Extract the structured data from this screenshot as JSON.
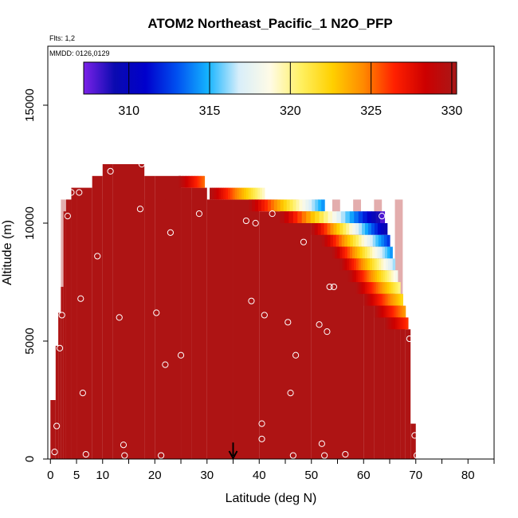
{
  "chart_data": {
    "type": "heatmap",
    "title": "ATOM2 Northeast_Pacific_1 N2O_PFP",
    "subtitle_flights": "Flts: 1,2",
    "subtitle_dates": "MMDD: 0126,0129",
    "xlabel": "Latitude (deg N)",
    "ylabel": "Altitude (m)",
    "xlim": [
      -0.5,
      85
    ],
    "ylim": [
      0,
      17500
    ],
    "x_ticks": [
      0,
      5,
      10,
      20,
      30,
      40,
      50,
      60,
      70,
      80
    ],
    "x_tick_labels": [
      "0",
      "5",
      "10",
      "20",
      "30",
      "40",
      "50",
      "60",
      "70",
      "80"
    ],
    "x_minor_ticks": [
      15,
      25,
      35,
      45,
      55,
      65,
      75,
      85
    ],
    "y_ticks": [
      0,
      5000,
      10000,
      15000
    ],
    "y_tick_labels": [
      "0",
      "5000",
      "10000",
      "15000"
    ],
    "colorbar": {
      "min": 307.2,
      "max": 330.3,
      "ticks": [
        310,
        315,
        320,
        325,
        330
      ],
      "tick_labels": [
        "310",
        "315",
        "320",
        "325",
        "330"
      ],
      "colors": [
        "#7b22e8",
        "#0a0ab0",
        "#0000cc",
        "#0050f0",
        "#14b4ff",
        "#d8eefa",
        "#fffbe6",
        "#fff060",
        "#ffd000",
        "#ff8a00",
        "#ff2000",
        "#cc0000",
        "#a81818"
      ]
    },
    "background_value": 330.0,
    "envelope": [
      [
        1,
        0,
        2500
      ],
      [
        1.5,
        0,
        4800
      ],
      [
        2,
        0,
        6200
      ],
      [
        2.5,
        0,
        7300
      ],
      [
        3,
        0,
        10500
      ],
      [
        4,
        0,
        11000
      ],
      [
        5,
        0,
        11500
      ],
      [
        8,
        0,
        11500
      ],
      [
        10,
        0,
        12000
      ],
      [
        12,
        0,
        12500
      ],
      [
        18,
        0,
        12500
      ],
      [
        20,
        0,
        12000
      ],
      [
        25,
        0,
        12000
      ],
      [
        27,
        0,
        11500
      ],
      [
        30,
        0,
        11500
      ],
      [
        35,
        0,
        11000
      ],
      [
        40,
        0,
        11000
      ],
      [
        50,
        0,
        10500
      ],
      [
        55,
        0,
        10000
      ],
      [
        60,
        0,
        10000
      ],
      [
        62,
        0,
        9500
      ],
      [
        64,
        0,
        9000
      ],
      [
        66,
        0,
        8000
      ],
      [
        67,
        0,
        7000
      ],
      [
        68,
        0,
        6000
      ],
      [
        69,
        0,
        5500
      ],
      [
        70,
        0,
        1500
      ],
      [
        70.5,
        0,
        0
      ]
    ],
    "gradient_bands": [
      {
        "alt_low": 11500,
        "alt_high": 12000,
        "x_start": 24.5,
        "x_end": 29.5,
        "v_start": 330,
        "v_end": 325
      },
      {
        "alt_low": 11000,
        "alt_high": 11500,
        "x_start": 30.5,
        "x_end": 41,
        "v_start": 330,
        "v_end": 319
      },
      {
        "alt_low": 10500,
        "alt_high": 11000,
        "x_start": 38,
        "x_end": 52.5,
        "v_start": 330,
        "v_end": 314
      },
      {
        "alt_low": 10000,
        "alt_high": 10500,
        "x_start": 44,
        "x_end": 64,
        "v_start": 330,
        "v_end": 307.5
      },
      {
        "alt_low": 9500,
        "alt_high": 10000,
        "x_start": 50,
        "x_end": 64.5,
        "v_start": 330,
        "v_end": 309
      },
      {
        "alt_low": 9000,
        "alt_high": 9500,
        "x_start": 52,
        "x_end": 65,
        "v_start": 330,
        "v_end": 312
      },
      {
        "alt_low": 8500,
        "alt_high": 9000,
        "x_start": 54,
        "x_end": 65.5,
        "v_start": 330,
        "v_end": 314
      },
      {
        "alt_low": 8000,
        "alt_high": 8500,
        "x_start": 55.5,
        "x_end": 66,
        "v_start": 330,
        "v_end": 316
      },
      {
        "alt_low": 7500,
        "alt_high": 8000,
        "x_start": 57,
        "x_end": 66.5,
        "v_start": 330,
        "v_end": 318
      },
      {
        "alt_low": 7000,
        "alt_high": 7500,
        "x_start": 58.5,
        "x_end": 67,
        "v_start": 330,
        "v_end": 320
      },
      {
        "alt_low": 6500,
        "alt_high": 7000,
        "x_start": 60,
        "x_end": 67.5,
        "v_start": 330,
        "v_end": 322
      },
      {
        "alt_low": 6000,
        "alt_high": 6500,
        "x_start": 62,
        "x_end": 68,
        "v_start": 330,
        "v_end": 324
      },
      {
        "alt_low": 5500,
        "alt_high": 6000,
        "x_start": 64,
        "x_end": 68.5,
        "v_start": 330,
        "v_end": 326
      }
    ],
    "samples": [
      [
        0.8,
        300
      ],
      [
        1.2,
        1400
      ],
      [
        1.8,
        4700
      ],
      [
        2.2,
        6100
      ],
      [
        3.3,
        10300
      ],
      [
        4,
        11300
      ],
      [
        5.5,
        11300
      ],
      [
        5.8,
        6800
      ],
      [
        6.2,
        2800
      ],
      [
        6.8,
        200
      ],
      [
        9,
        8600
      ],
      [
        11.5,
        12200
      ],
      [
        13.2,
        6000
      ],
      [
        14,
        600
      ],
      [
        14.2,
        150
      ],
      [
        17.5,
        12500
      ],
      [
        17.2,
        10600
      ],
      [
        20.3,
        6200
      ],
      [
        21.2,
        150
      ],
      [
        22,
        4000
      ],
      [
        23,
        9600
      ],
      [
        25,
        4400
      ],
      [
        28.5,
        10400
      ],
      [
        37.5,
        10100
      ],
      [
        38.5,
        6700
      ],
      [
        39.3,
        10000
      ],
      [
        40.5,
        1500
      ],
      [
        40.5,
        850
      ],
      [
        41,
        6100
      ],
      [
        42.5,
        10400
      ],
      [
        45.5,
        5800
      ],
      [
        46,
        2800
      ],
      [
        46.5,
        150
      ],
      [
        47,
        4400
      ],
      [
        48.5,
        9200
      ],
      [
        51.5,
        5700
      ],
      [
        52,
        650
      ],
      [
        52.5,
        150
      ],
      [
        53,
        5400
      ],
      [
        53.5,
        7300
      ],
      [
        54.3,
        7300
      ],
      [
        56.5,
        200
      ],
      [
        63.5,
        10300
      ],
      [
        68.8,
        5100
      ],
      [
        69.8,
        1000
      ],
      [
        70.2,
        150
      ]
    ],
    "marker": {
      "x": 35,
      "label": ""
    }
  }
}
